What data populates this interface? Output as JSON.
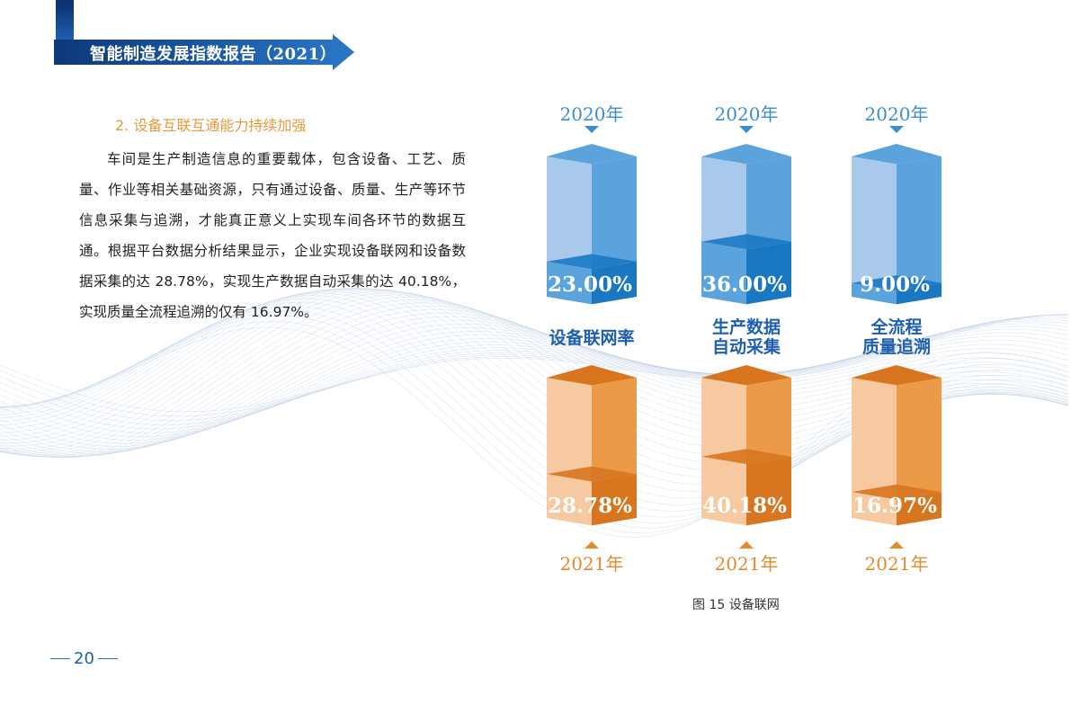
{
  "header": {
    "report_title": "智能制造发展指数报告",
    "year_tag": "（2021）"
  },
  "section": {
    "title": "2. 设备互联互通能力持续加强",
    "paragraph": "车间是生产制造信息的重要载体，包含设备、工艺、质量、作业等相关基础资源，只有通过设备、质量、生产等环节信息采集与追溯，才能真正意义上实现车间各环节的数据互通。根据平台数据分析结果显示，企业实现设备联网和设备数据采集的达 28.78%，实现生产数据自动采集的达 40.18%，实现质量全流程追溯的仅有 16.97%。"
  },
  "colors": {
    "blue_light": "#a9c9ec",
    "blue_mid": "#5aa3dc",
    "blue_dark": "#1a78c2",
    "orange_light": "#f6c9a0",
    "orange_mid": "#eb9a48",
    "orange_dark": "#d8761f",
    "blue_text": "#3a8fd1",
    "orange_text": "#e48a2f",
    "header_blue": "#1f5fae"
  },
  "chart_data": {
    "type": "bar",
    "categories": [
      "设备联网率",
      "生产数据\n自动采集",
      "全流程\n质量追溯"
    ],
    "series": [
      {
        "name": "2020年",
        "values": [
          23.0,
          36.0,
          9.0
        ],
        "labels": [
          "23.00%",
          "36.00%",
          "9.00%"
        ]
      },
      {
        "name": "2021年",
        "values": [
          28.78,
          40.18,
          16.97
        ],
        "labels": [
          "28.78%",
          "40.18%",
          "16.97%"
        ]
      }
    ],
    "ylim": [
      0,
      100
    ],
    "title": "",
    "legend": "none"
  },
  "figure": {
    "caption": "图 15  设备联网"
  },
  "footer": {
    "page_number": "20"
  }
}
